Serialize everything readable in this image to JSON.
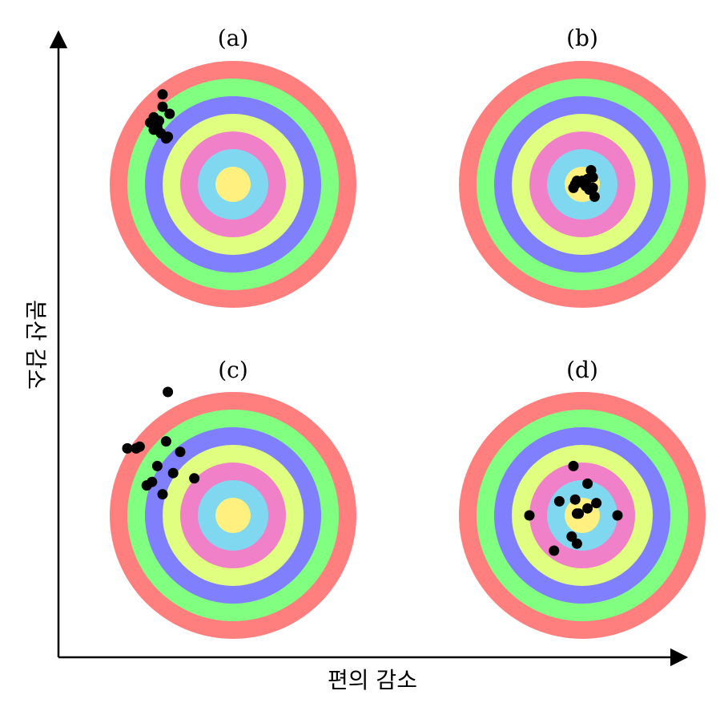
{
  "axes": {
    "x_label": "편의 감소",
    "y_label": "분산 감소"
  },
  "colors": {
    "rings": [
      "#ff7f7f",
      "#80ff80",
      "#8080ff",
      "#e0ff80",
      "#f080c8",
      "#80d8f0",
      "#fff080"
    ],
    "shot": "#000000",
    "axis": "#000000"
  },
  "targets": [
    {
      "id": "a",
      "label": "(a)",
      "shots": [
        [
          -4.0,
          5.1
        ],
        [
          -4.0,
          4.4
        ],
        [
          -3.6,
          4.0
        ],
        [
          -4.2,
          3.6
        ],
        [
          -4.5,
          3.8
        ],
        [
          -4.3,
          3.4
        ],
        [
          -4.7,
          3.5
        ],
        [
          -4.3,
          3.2
        ],
        [
          -4.5,
          3.1
        ],
        [
          -4.1,
          2.9
        ],
        [
          -3.8,
          2.6
        ],
        [
          -3.7,
          2.7
        ]
      ]
    },
    {
      "id": "b",
      "label": "(b)",
      "shots": [
        [
          0.5,
          0.8
        ],
        [
          0.3,
          0.3
        ],
        [
          0.6,
          0.4
        ],
        [
          -0.4,
          0.0
        ],
        [
          0.0,
          0.2
        ],
        [
          0.2,
          -0.1
        ],
        [
          -0.5,
          -0.2
        ],
        [
          0.4,
          -0.3
        ],
        [
          0.6,
          -0.2
        ],
        [
          0.0,
          0.1
        ],
        [
          0.7,
          -0.7
        ],
        [
          -0.3,
          0.2
        ]
      ]
    },
    {
      "id": "c",
      "label": "(c)",
      "shots": [
        [
          -3.7,
          7.0
        ],
        [
          -6.0,
          3.8
        ],
        [
          -5.5,
          3.8
        ],
        [
          -5.3,
          3.9
        ],
        [
          -3.8,
          4.2
        ],
        [
          -3.0,
          3.6
        ],
        [
          -4.3,
          2.8
        ],
        [
          -3.4,
          2.4
        ],
        [
          -4.6,
          1.9
        ],
        [
          -4.9,
          1.7
        ],
        [
          -2.2,
          2.1
        ],
        [
          -4.0,
          1.2
        ]
      ]
    },
    {
      "id": "d",
      "label": "(d)",
      "shots": [
        [
          -0.5,
          2.8
        ],
        [
          0.3,
          1.8
        ],
        [
          -1.3,
          0.8
        ],
        [
          -0.4,
          0.9
        ],
        [
          0.8,
          0.7
        ],
        [
          0.3,
          0.4
        ],
        [
          -0.3,
          0.1
        ],
        [
          -0.2,
          0.1
        ],
        [
          2.0,
          0.0
        ],
        [
          -3.0,
          0.0
        ],
        [
          -0.6,
          -1.2
        ],
        [
          -0.3,
          -1.6
        ],
        [
          -1.6,
          -2.0
        ]
      ]
    }
  ]
}
